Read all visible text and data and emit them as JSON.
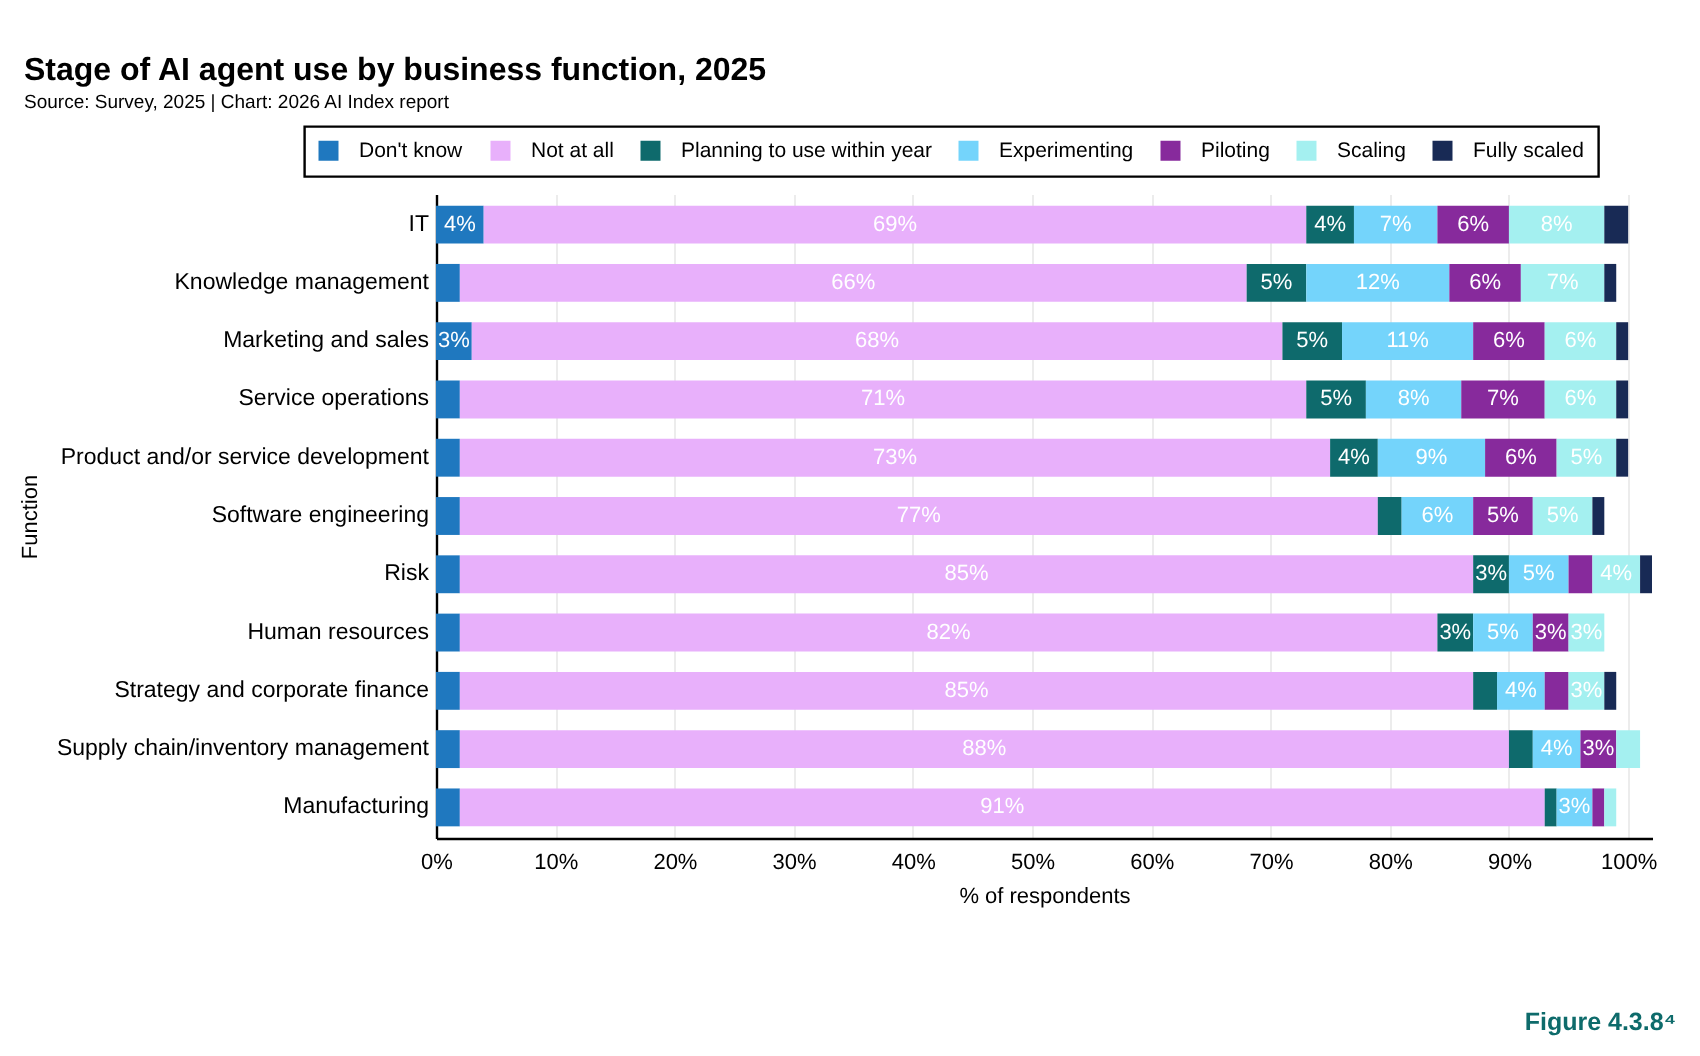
{
  "chart_data": {
    "type": "bar",
    "orientation": "horizontal",
    "stacked": true,
    "title": "Stage of AI agent use by business function, 2025",
    "subtitle": "Source: Survey, 2025 | Chart: 2026 AI Index report",
    "xlabel": "% of respondents",
    "ylabel": "Function",
    "categories": [
      "IT",
      "Knowledge management",
      "Marketing and sales",
      "Service operations",
      "Product and/or service development",
      "Software engineering",
      "Risk",
      "Human resources",
      "Strategy and corporate finance",
      "Supply chain/inventory management",
      "Manufacturing"
    ],
    "series": [
      {
        "name": "Don't know",
        "color": "#1f78bf",
        "values": [
          4,
          2,
          3,
          2,
          2,
          2,
          2,
          2,
          2,
          2,
          2
        ],
        "value_labels": [
          "4%",
          null,
          "3%",
          null,
          null,
          null,
          null,
          null,
          null,
          null,
          null
        ]
      },
      {
        "name": "Not at all",
        "color": "#e8b0fb",
        "values": [
          69,
          66,
          68,
          71,
          73,
          77,
          85,
          82,
          85,
          88,
          91
        ],
        "value_labels": [
          "69%",
          "66%",
          "68%",
          "71%",
          "73%",
          "77%",
          "85%",
          "82%",
          "85%",
          "88%",
          "91%"
        ]
      },
      {
        "name": "Planning to use within year",
        "color": "#0e6a6c",
        "values": [
          4,
          5,
          5,
          5,
          4,
          2,
          3,
          3,
          2,
          2,
          1
        ],
        "value_labels": [
          "4%",
          "5%",
          "5%",
          "5%",
          "4%",
          null,
          "3%",
          "3%",
          null,
          null,
          null
        ]
      },
      {
        "name": "Experimenting",
        "color": "#74d4fb",
        "values": [
          7,
          12,
          11,
          8,
          9,
          6,
          5,
          5,
          4,
          4,
          3
        ],
        "value_labels": [
          "7%",
          "12%",
          "11%",
          "8%",
          "9%",
          "6%",
          "5%",
          "5%",
          "4%",
          "4%",
          "3%"
        ]
      },
      {
        "name": "Piloting",
        "color": "#872a9c",
        "values": [
          6,
          6,
          6,
          7,
          6,
          5,
          2,
          3,
          2,
          3,
          1
        ],
        "value_labels": [
          "6%",
          "6%",
          "6%",
          "7%",
          "6%",
          "5%",
          null,
          "3%",
          null,
          "3%",
          null
        ]
      },
      {
        "name": "Scaling",
        "color": "#a4f0f0",
        "values": [
          8,
          7,
          6,
          6,
          5,
          5,
          4,
          3,
          3,
          2,
          1
        ],
        "value_labels": [
          "8%",
          "7%",
          "6%",
          "6%",
          "5%",
          "5%",
          "4%",
          "3%",
          "3%",
          null,
          null
        ]
      },
      {
        "name": "Fully scaled",
        "color": "#182a55",
        "values": [
          2,
          1,
          1,
          1,
          1,
          1,
          1,
          0,
          1,
          0,
          0
        ]
      }
    ],
    "xlim": [
      0,
      102
    ],
    "xticks": [
      {
        "value": 0,
        "label": "0%"
      },
      {
        "value": 10,
        "label": "10%"
      },
      {
        "value": 20,
        "label": "20%"
      },
      {
        "value": 30,
        "label": "30%"
      },
      {
        "value": 40,
        "label": "40%"
      },
      {
        "value": 50,
        "label": "50%"
      },
      {
        "value": 60,
        "label": "60%"
      },
      {
        "value": 70,
        "label": "70%"
      },
      {
        "value": 80,
        "label": "80%"
      },
      {
        "value": 90,
        "label": "90%"
      },
      {
        "value": 100,
        "label": "100%"
      }
    ],
    "grid": "x",
    "legend": "top",
    "annotations": [
      "Figure 4.3.8⁴"
    ]
  }
}
